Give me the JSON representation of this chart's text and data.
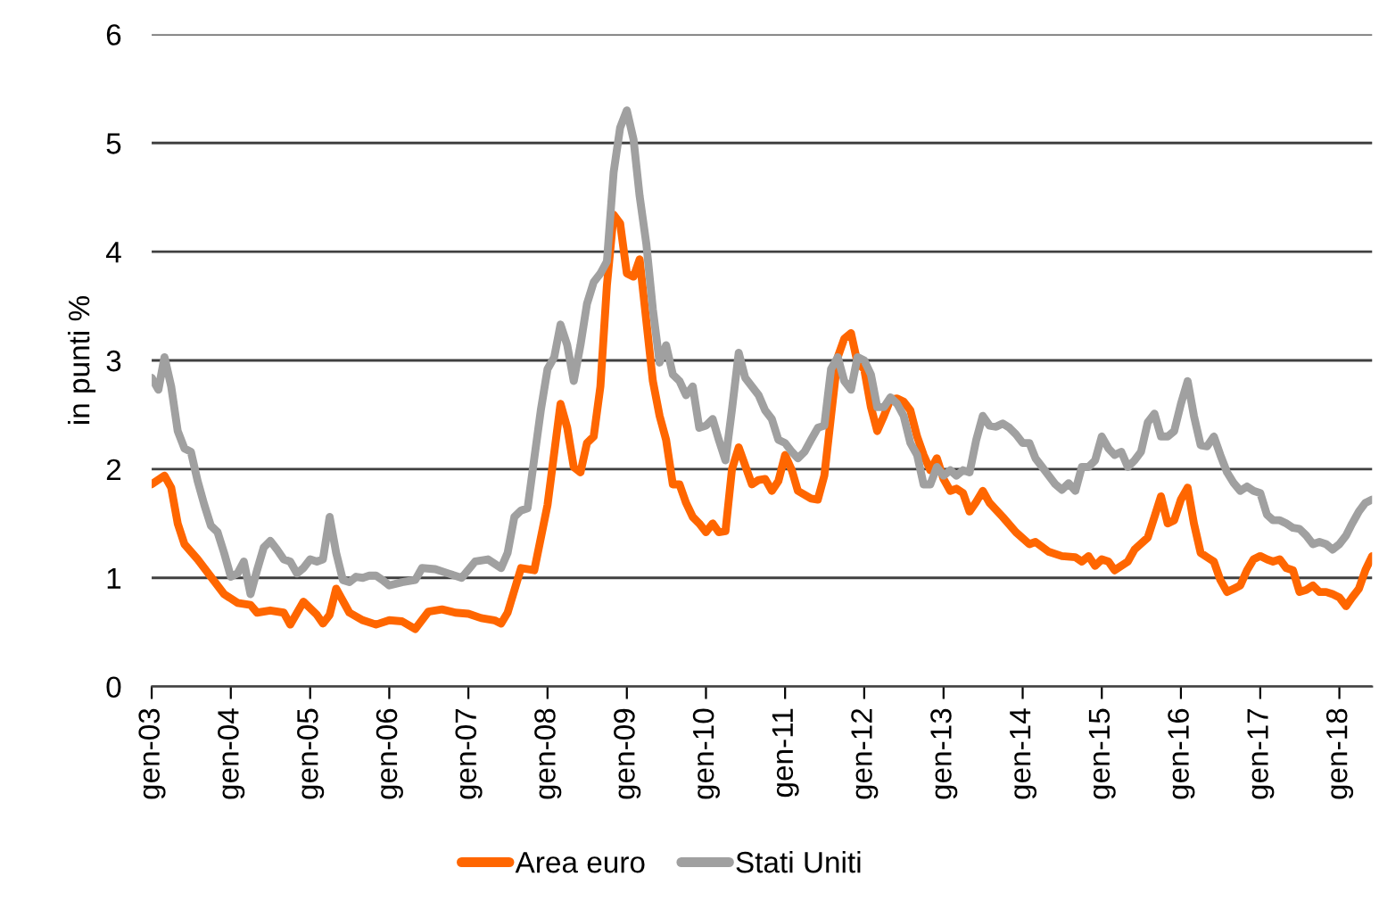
{
  "chart_data": {
    "type": "line",
    "ylabel": "in punti %",
    "ylim": [
      0,
      6
    ],
    "yticks": [
      0,
      1,
      2,
      3,
      4,
      5,
      6
    ],
    "xlim": [
      "2003-01",
      "2018-06"
    ],
    "xticks": [
      {
        "value": "2003-01",
        "label": "gen-03"
      },
      {
        "value": "2004-01",
        "label": "gen-04"
      },
      {
        "value": "2005-01",
        "label": "gen-05"
      },
      {
        "value": "2006-01",
        "label": "gen-06"
      },
      {
        "value": "2007-01",
        "label": "gen-07"
      },
      {
        "value": "2008-01",
        "label": "gen-08"
      },
      {
        "value": "2009-01",
        "label": "gen-09"
      },
      {
        "value": "2010-01",
        "label": "gen-10"
      },
      {
        "value": "2011-01",
        "label": "gen-11"
      },
      {
        "value": "2012-01",
        "label": "gen-12"
      },
      {
        "value": "2013-01",
        "label": "gen-13"
      },
      {
        "value": "2014-01",
        "label": "gen-14"
      },
      {
        "value": "2015-01",
        "label": "gen-15"
      },
      {
        "value": "2016-01",
        "label": "gen-16"
      },
      {
        "value": "2017-01",
        "label": "gen-17"
      },
      {
        "value": "2018-01",
        "label": "gen-18"
      }
    ],
    "grid": "y",
    "legend": "bottom",
    "marker": "none",
    "line_style": "solid",
    "series": [
      {
        "name": "Area euro",
        "color": "#ff6600",
        "x": [
          "2003-01",
          "2003-03",
          "2003-04",
          "2003-05",
          "2003-06",
          "2003-08",
          "2003-10",
          "2003-12",
          "2004-02",
          "2004-04",
          "2004-05",
          "2004-07",
          "2004-09",
          "2004-10",
          "2004-12",
          "2005-02",
          "2005-03",
          "2005-04",
          "2005-05",
          "2005-07",
          "2005-09",
          "2005-11",
          "2006-01",
          "2006-03",
          "2006-05",
          "2006-07",
          "2006-09",
          "2006-11",
          "2007-01",
          "2007-03",
          "2007-05",
          "2007-06",
          "2007-07",
          "2007-09",
          "2007-11",
          "2008-01",
          "2008-03",
          "2008-04",
          "2008-05",
          "2008-06",
          "2008-07",
          "2008-08",
          "2008-09",
          "2008-10",
          "2008-11",
          "2008-12",
          "2009-01",
          "2009-02",
          "2009-03",
          "2009-04",
          "2009-05",
          "2009-06",
          "2009-07",
          "2009-08",
          "2009-09",
          "2009-10",
          "2009-11",
          "2009-12",
          "2010-01",
          "2010-02",
          "2010-03",
          "2010-04",
          "2010-05",
          "2010-06",
          "2010-08",
          "2010-09",
          "2010-10",
          "2010-11",
          "2010-12",
          "2011-01",
          "2011-02",
          "2011-03",
          "2011-05",
          "2011-06",
          "2011-07",
          "2011-08",
          "2011-09",
          "2011-10",
          "2011-11",
          "2011-12",
          "2012-01",
          "2012-02",
          "2012-03",
          "2012-04",
          "2012-05",
          "2012-06",
          "2012-07",
          "2012-08",
          "2012-09",
          "2012-10",
          "2012-11",
          "2012-12",
          "2013-01",
          "2013-02",
          "2013-03",
          "2013-04",
          "2013-05",
          "2013-06",
          "2013-07",
          "2013-08",
          "2013-10",
          "2013-12",
          "2014-02",
          "2014-03",
          "2014-05",
          "2014-07",
          "2014-09",
          "2014-10",
          "2014-11",
          "2014-12",
          "2015-01",
          "2015-02",
          "2015-03",
          "2015-05",
          "2015-06",
          "2015-08",
          "2015-09",
          "2015-10",
          "2015-11",
          "2015-12",
          "2016-01",
          "2016-02",
          "2016-03",
          "2016-04",
          "2016-05",
          "2016-06",
          "2016-07",
          "2016-08",
          "2016-09",
          "2016-10",
          "2016-11",
          "2016-12",
          "2017-01",
          "2017-02",
          "2017-03",
          "2017-04",
          "2017-05",
          "2017-06",
          "2017-07",
          "2017-08",
          "2017-09",
          "2017-10",
          "2017-11",
          "2017-12",
          "2018-01",
          "2018-02",
          "2018-03",
          "2018-04",
          "2018-05",
          "2018-06"
        ],
        "values": [
          1.86,
          1.94,
          1.83,
          1.5,
          1.31,
          1.17,
          1.01,
          0.85,
          0.77,
          0.75,
          0.68,
          0.7,
          0.68,
          0.57,
          0.78,
          0.66,
          0.58,
          0.66,
          0.9,
          0.68,
          0.61,
          0.57,
          0.61,
          0.6,
          0.53,
          0.69,
          0.71,
          0.68,
          0.67,
          0.63,
          0.61,
          0.58,
          0.68,
          1.09,
          1.07,
          1.67,
          2.6,
          2.38,
          2.02,
          1.97,
          2.24,
          2.3,
          2.76,
          3.69,
          4.34,
          4.26,
          3.8,
          3.77,
          3.93,
          3.36,
          2.81,
          2.49,
          2.27,
          1.86,
          1.86,
          1.69,
          1.56,
          1.5,
          1.42,
          1.5,
          1.42,
          1.43,
          2.0,
          2.2,
          1.86,
          1.9,
          1.91,
          1.8,
          1.89,
          2.13,
          1.99,
          1.8,
          1.73,
          1.72,
          1.94,
          2.49,
          3.03,
          3.2,
          3.25,
          2.98,
          2.92,
          2.57,
          2.35,
          2.49,
          2.64,
          2.65,
          2.62,
          2.54,
          2.3,
          2.13,
          1.99,
          2.1,
          1.91,
          1.8,
          1.82,
          1.78,
          1.61,
          1.7,
          1.8,
          1.69,
          1.56,
          1.42,
          1.31,
          1.33,
          1.24,
          1.2,
          1.19,
          1.15,
          1.2,
          1.11,
          1.17,
          1.15,
          1.07,
          1.15,
          1.26,
          1.37,
          1.56,
          1.75,
          1.5,
          1.53,
          1.72,
          1.83,
          1.5,
          1.23,
          1.19,
          1.15,
          0.98,
          0.87,
          0.9,
          0.93,
          1.07,
          1.17,
          1.2,
          1.17,
          1.15,
          1.17,
          1.09,
          1.07,
          0.87,
          0.89,
          0.93,
          0.87,
          0.87,
          0.85,
          0.82,
          0.74,
          0.82,
          0.9,
          1.07,
          1.2
        ]
      },
      {
        "name": "Stati Uniti",
        "color": "#a0a0a0",
        "x": [
          "2003-01",
          "2003-02",
          "2003-03",
          "2003-04",
          "2003-05",
          "2003-06",
          "2003-07",
          "2003-08",
          "2003-09",
          "2003-10",
          "2003-11",
          "2003-12",
          "2004-01",
          "2004-02",
          "2004-03",
          "2004-04",
          "2004-05",
          "2004-06",
          "2004-07",
          "2004-08",
          "2004-09",
          "2004-10",
          "2004-11",
          "2004-12",
          "2005-01",
          "2005-02",
          "2005-03",
          "2005-04",
          "2005-05",
          "2005-06",
          "2005-07",
          "2005-08",
          "2005-09",
          "2005-10",
          "2005-11",
          "2005-12",
          "2006-01",
          "2006-03",
          "2006-05",
          "2006-06",
          "2006-08",
          "2006-10",
          "2006-12",
          "2007-02",
          "2007-04",
          "2007-06",
          "2007-07",
          "2007-08",
          "2007-09",
          "2007-10",
          "2007-11",
          "2007-12",
          "2008-01",
          "2008-02",
          "2008-03",
          "2008-04",
          "2008-05",
          "2008-06",
          "2008-07",
          "2008-08",
          "2008-09",
          "2008-10",
          "2008-11",
          "2008-12",
          "2009-01",
          "2009-02",
          "2009-03",
          "2009-04",
          "2009-05",
          "2009-06",
          "2009-07",
          "2009-08",
          "2009-09",
          "2009-10",
          "2009-11",
          "2009-12",
          "2010-01",
          "2010-02",
          "2010-03",
          "2010-04",
          "2010-05",
          "2010-06",
          "2010-07",
          "2010-08",
          "2010-09",
          "2010-10",
          "2010-11",
          "2010-12",
          "2011-01",
          "2011-02",
          "2011-03",
          "2011-04",
          "2011-05",
          "2011-06",
          "2011-07",
          "2011-08",
          "2011-09",
          "2011-10",
          "2011-11",
          "2011-12",
          "2012-01",
          "2012-02",
          "2012-03",
          "2012-04",
          "2012-05",
          "2012-06",
          "2012-07",
          "2012-08",
          "2012-09",
          "2012-10",
          "2012-11",
          "2012-12",
          "2013-01",
          "2013-02",
          "2013-03",
          "2013-04",
          "2013-05",
          "2013-06",
          "2013-07",
          "2013-08",
          "2013-09",
          "2013-10",
          "2013-11",
          "2013-12",
          "2014-01",
          "2014-02",
          "2014-03",
          "2014-04",
          "2014-05",
          "2014-06",
          "2014-07",
          "2014-08",
          "2014-09",
          "2014-10",
          "2014-11",
          "2014-12",
          "2015-01",
          "2015-02",
          "2015-03",
          "2015-04",
          "2015-05",
          "2015-06",
          "2015-07",
          "2015-08",
          "2015-09",
          "2015-10",
          "2015-11",
          "2015-12",
          "2016-01",
          "2016-02",
          "2016-03",
          "2016-04",
          "2016-05",
          "2016-06",
          "2016-07",
          "2016-08",
          "2016-09",
          "2016-10",
          "2016-11",
          "2016-12",
          "2017-01",
          "2017-02",
          "2017-03",
          "2017-04",
          "2017-05",
          "2017-06",
          "2017-07",
          "2017-08",
          "2017-09",
          "2017-10",
          "2017-11",
          "2017-12",
          "2018-01",
          "2018-02",
          "2018-03",
          "2018-04",
          "2018-05",
          "2018-06"
        ],
        "values": [
          2.84,
          2.73,
          3.03,
          2.76,
          2.35,
          2.19,
          2.16,
          1.89,
          1.67,
          1.48,
          1.42,
          1.23,
          1.01,
          1.04,
          1.15,
          0.85,
          1.07,
          1.28,
          1.34,
          1.26,
          1.17,
          1.15,
          1.04,
          1.09,
          1.17,
          1.15,
          1.17,
          1.56,
          1.23,
          0.98,
          0.96,
          1.01,
          1.0,
          1.02,
          1.02,
          0.98,
          0.93,
          0.96,
          0.98,
          1.09,
          1.08,
          1.04,
          1.0,
          1.15,
          1.17,
          1.09,
          1.23,
          1.56,
          1.62,
          1.64,
          2.1,
          2.54,
          2.92,
          3.03,
          3.33,
          3.14,
          2.81,
          3.14,
          3.52,
          3.72,
          3.8,
          3.91,
          4.73,
          5.14,
          5.3,
          5.03,
          4.51,
          4.07,
          3.47,
          2.98,
          3.14,
          2.87,
          2.81,
          2.68,
          2.76,
          2.38,
          2.4,
          2.46,
          2.27,
          2.08,
          2.55,
          3.07,
          2.84,
          2.76,
          2.68,
          2.54,
          2.46,
          2.27,
          2.24,
          2.16,
          2.1,
          2.16,
          2.27,
          2.38,
          2.4,
          2.92,
          3.03,
          2.81,
          2.73,
          3.03,
          3.0,
          2.87,
          2.57,
          2.57,
          2.66,
          2.6,
          2.49,
          2.24,
          2.13,
          1.86,
          1.86,
          2.02,
          1.94,
          1.99,
          1.94,
          1.99,
          1.97,
          2.27,
          2.49,
          2.4,
          2.39,
          2.42,
          2.38,
          2.32,
          2.24,
          2.24,
          2.1,
          2.02,
          1.94,
          1.86,
          1.81,
          1.87,
          1.8,
          2.02,
          2.02,
          2.08,
          2.3,
          2.19,
          2.13,
          2.16,
          2.02,
          2.08,
          2.16,
          2.43,
          2.51,
          2.3,
          2.3,
          2.35,
          2.6,
          2.81,
          2.49,
          2.22,
          2.21,
          2.3,
          2.13,
          1.97,
          1.87,
          1.8,
          1.84,
          1.8,
          1.78,
          1.58,
          1.53,
          1.53,
          1.5,
          1.46,
          1.45,
          1.39,
          1.31,
          1.33,
          1.31,
          1.26,
          1.31,
          1.39,
          1.5,
          1.61,
          1.69,
          1.72
        ]
      }
    ]
  }
}
